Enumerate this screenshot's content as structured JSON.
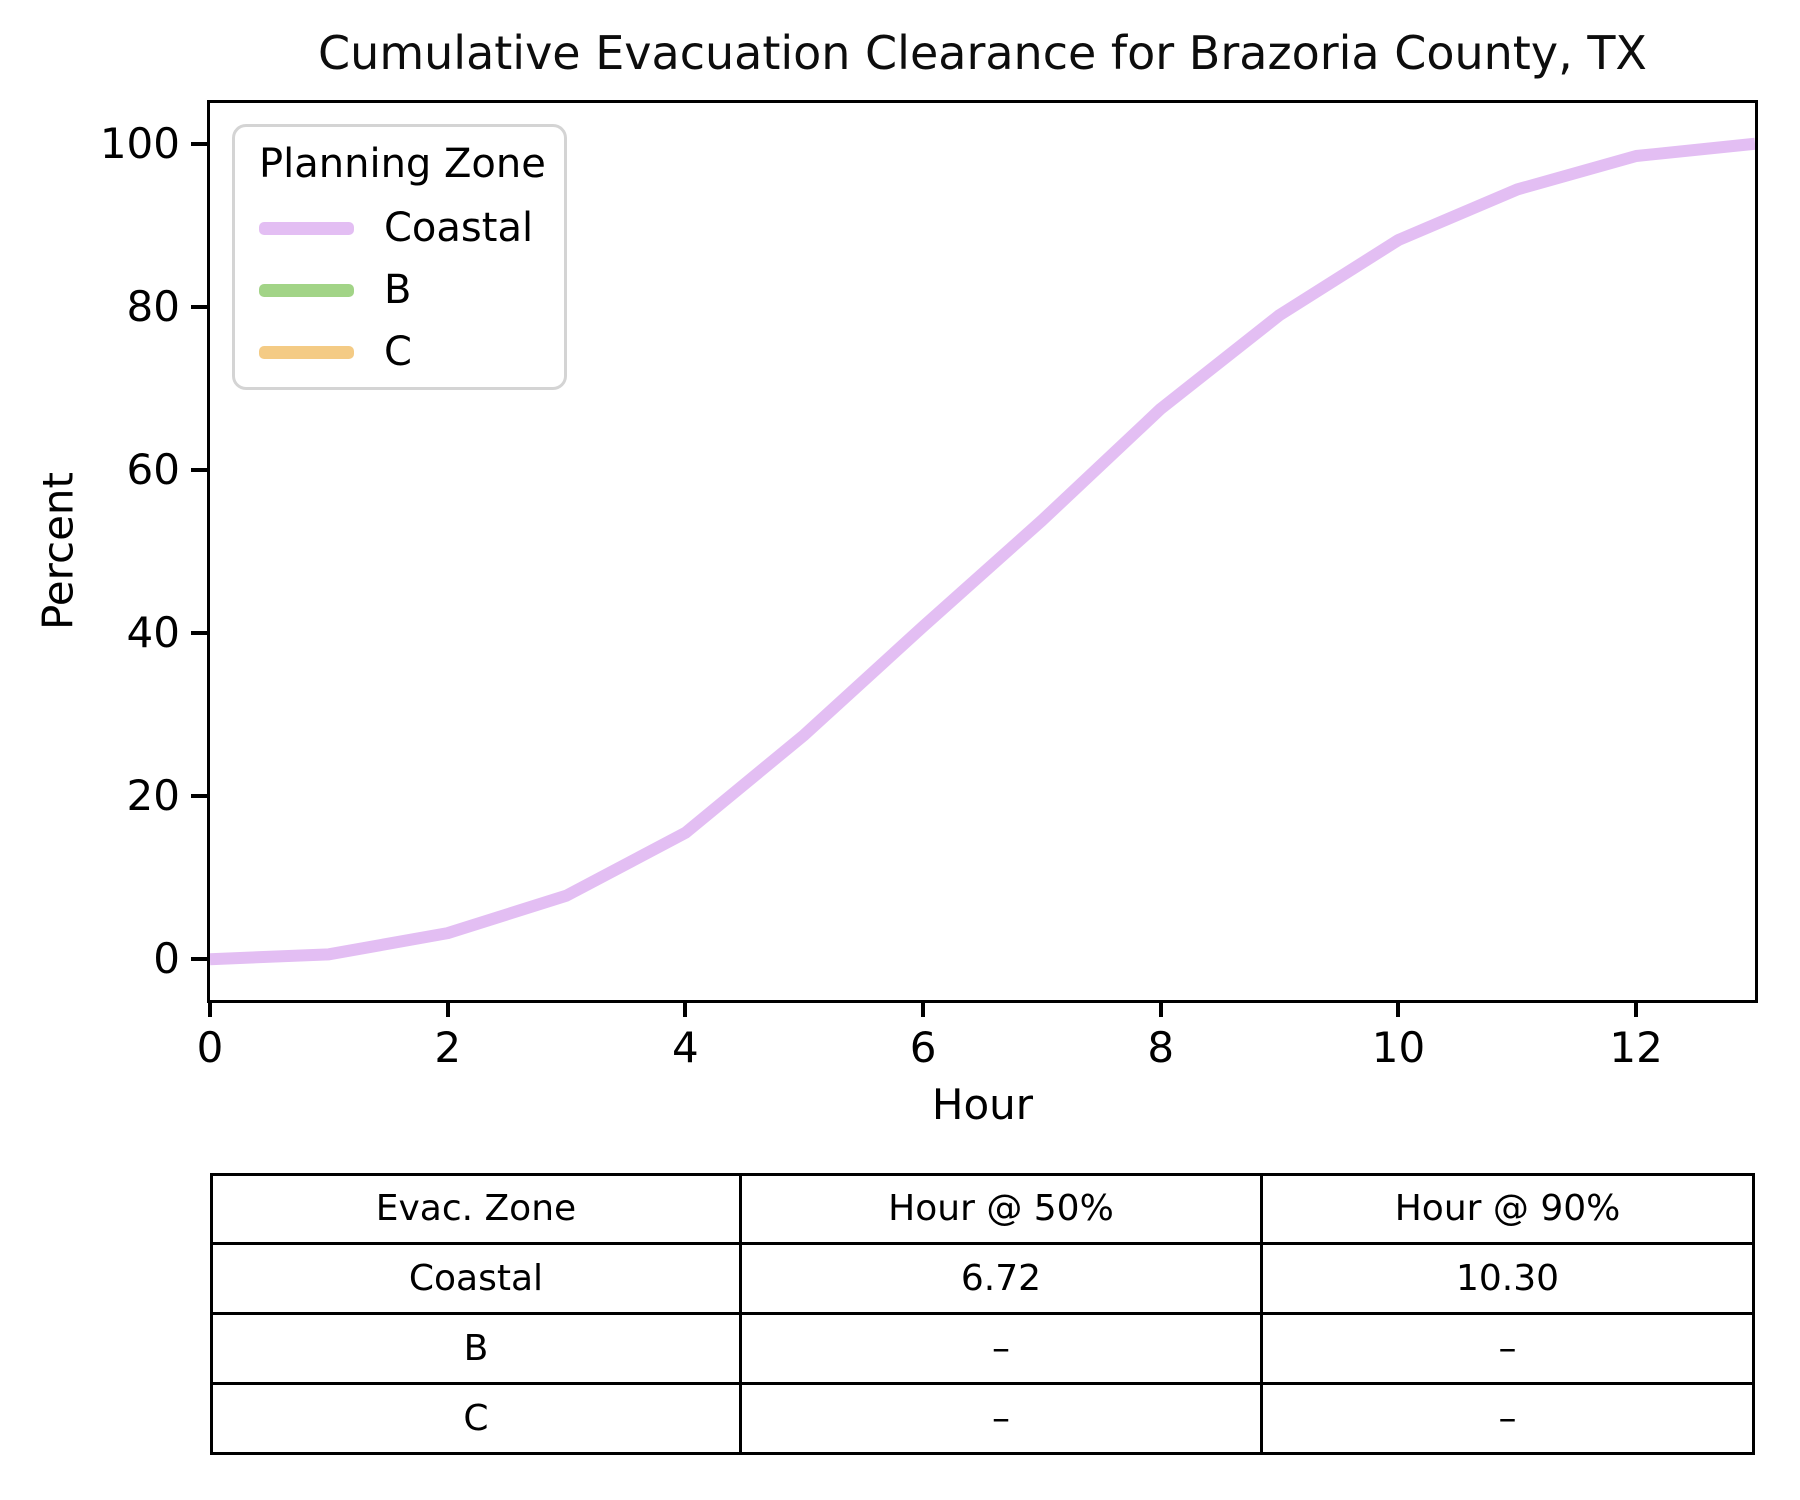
{
  "title": "Cumulative Evacuation Clearance for Brazoria County, TX",
  "colors": {
    "coastal": "#e3bef3",
    "zone_b": "#a2d487",
    "zone_c": "#f4cb85",
    "axis": "#000000",
    "legend_border": "#d4d4d4",
    "background": "#ffffff"
  },
  "legend": {
    "title": "Planning Zone",
    "entries": [
      {
        "label": "Coastal",
        "color": "#e3bef3"
      },
      {
        "label": "B",
        "color": "#a2d487"
      },
      {
        "label": "C",
        "color": "#f4cb85"
      }
    ]
  },
  "chart_data": {
    "type": "line",
    "title": "Cumulative Evacuation Clearance for Brazoria County, TX",
    "xlabel": "Hour",
    "ylabel": "Percent",
    "xlim": [
      0,
      13
    ],
    "ylim": [
      -5,
      105
    ],
    "xticks": [
      0,
      2,
      4,
      6,
      8,
      10,
      12
    ],
    "yticks": [
      0,
      20,
      40,
      60,
      80,
      100
    ],
    "grid": false,
    "legend_title": "Planning Zone",
    "legend_position": "upper left",
    "series": [
      {
        "name": "Coastal",
        "color": "#e3bef3",
        "x": [
          0,
          1,
          2,
          3,
          4,
          5,
          6,
          7,
          8,
          9,
          10,
          11,
          12,
          13
        ],
        "y": [
          0,
          0.6,
          3.2,
          7.8,
          15.5,
          27.5,
          40.8,
          53.8,
          67.5,
          79,
          88.2,
          94.4,
          98.5,
          100
        ]
      },
      {
        "name": "B",
        "color": "#a2d487",
        "x": [],
        "y": []
      },
      {
        "name": "C",
        "color": "#f4cb85",
        "x": [],
        "y": []
      }
    ]
  },
  "table": {
    "headers": [
      "Evac. Zone",
      "Hour @ 50%",
      "Hour @ 90%"
    ],
    "rows": [
      [
        "Coastal",
        "6.72",
        "10.30"
      ],
      [
        "B",
        "–",
        "–"
      ],
      [
        "C",
        "–",
        "–"
      ]
    ]
  }
}
